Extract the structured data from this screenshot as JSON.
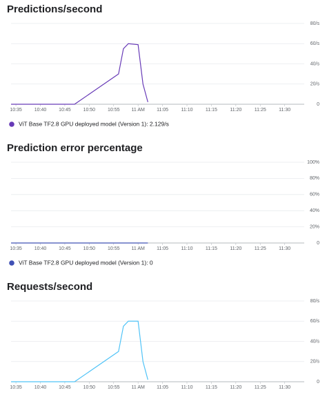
{
  "chart_data": [
    {
      "type": "line",
      "title": "Predictions/second",
      "x": [
        "10:34",
        "10:47",
        "10:56",
        "10:57",
        "10:58",
        "11:00",
        "11:01",
        "11:02"
      ],
      "series": [
        {
          "name": "ViT Base TF2.8 GPU deployed model (Version 1): 2.129/s",
          "color": "#673ab7",
          "values": [
            0,
            0,
            30,
            55,
            60,
            59,
            20,
            2.129
          ]
        }
      ],
      "xlim": [
        "10:34",
        "11:34"
      ],
      "xticks": [
        "10:35",
        "10:40",
        "10:45",
        "10:50",
        "10:55",
        {
          "value": "11:00",
          "label": "11 AM"
        },
        "11:05",
        "11:10",
        "11:15",
        "11:20",
        "11:25",
        "11:30"
      ],
      "ylim": [
        0,
        80
      ],
      "yticks": [
        0,
        {
          "value": 20,
          "label": "20/s"
        },
        {
          "value": 40,
          "label": "40/s"
        },
        {
          "value": 60,
          "label": "60/s"
        },
        {
          "value": 80,
          "label": "80/s"
        }
      ],
      "grid": true
    },
    {
      "type": "line",
      "title": "Prediction error percentage",
      "x": [
        "10:34",
        "11:02"
      ],
      "series": [
        {
          "name": "ViT Base TF2.8 GPU deployed model (Version 1): 0",
          "color": "#3f51b5",
          "values": [
            0,
            0
          ]
        }
      ],
      "xlim": [
        "10:34",
        "11:34"
      ],
      "xticks": [
        "10:35",
        "10:40",
        "10:45",
        "10:50",
        "10:55",
        {
          "value": "11:00",
          "label": "11 AM"
        },
        "11:05",
        "11:10",
        "11:15",
        "11:20",
        "11:25",
        "11:30"
      ],
      "ylim": [
        0,
        100
      ],
      "yticks": [
        0,
        {
          "value": 20,
          "label": "20%"
        },
        {
          "value": 40,
          "label": "40%"
        },
        {
          "value": 60,
          "label": "60%"
        },
        {
          "value": 80,
          "label": "80%"
        },
        {
          "value": 100,
          "label": "100%"
        }
      ],
      "grid": true
    },
    {
      "type": "line",
      "title": "Requests/second",
      "x": [
        "10:34",
        "10:47",
        "10:56",
        "10:57",
        "10:58",
        "11:00",
        "11:01",
        "11:02"
      ],
      "series": [
        {
          "color": "#4fc3f7",
          "values": [
            0,
            0,
            30,
            55,
            60,
            60,
            20,
            2
          ]
        }
      ],
      "xlim": [
        "10:34",
        "11:34"
      ],
      "xticks": [
        "10:35",
        "10:40",
        "10:45",
        "10:50",
        "10:55",
        {
          "value": "11:00",
          "label": "11 AM"
        },
        "11:05",
        "11:10",
        "11:15",
        "11:20",
        "11:25",
        "11:30"
      ],
      "ylim": [
        0,
        80
      ],
      "yticks": [
        0,
        {
          "value": 20,
          "label": "20/s"
        },
        {
          "value": 40,
          "label": "40/s"
        },
        {
          "value": 60,
          "label": "60/s"
        },
        {
          "value": 80,
          "label": "80/s"
        }
      ],
      "grid": true
    }
  ]
}
